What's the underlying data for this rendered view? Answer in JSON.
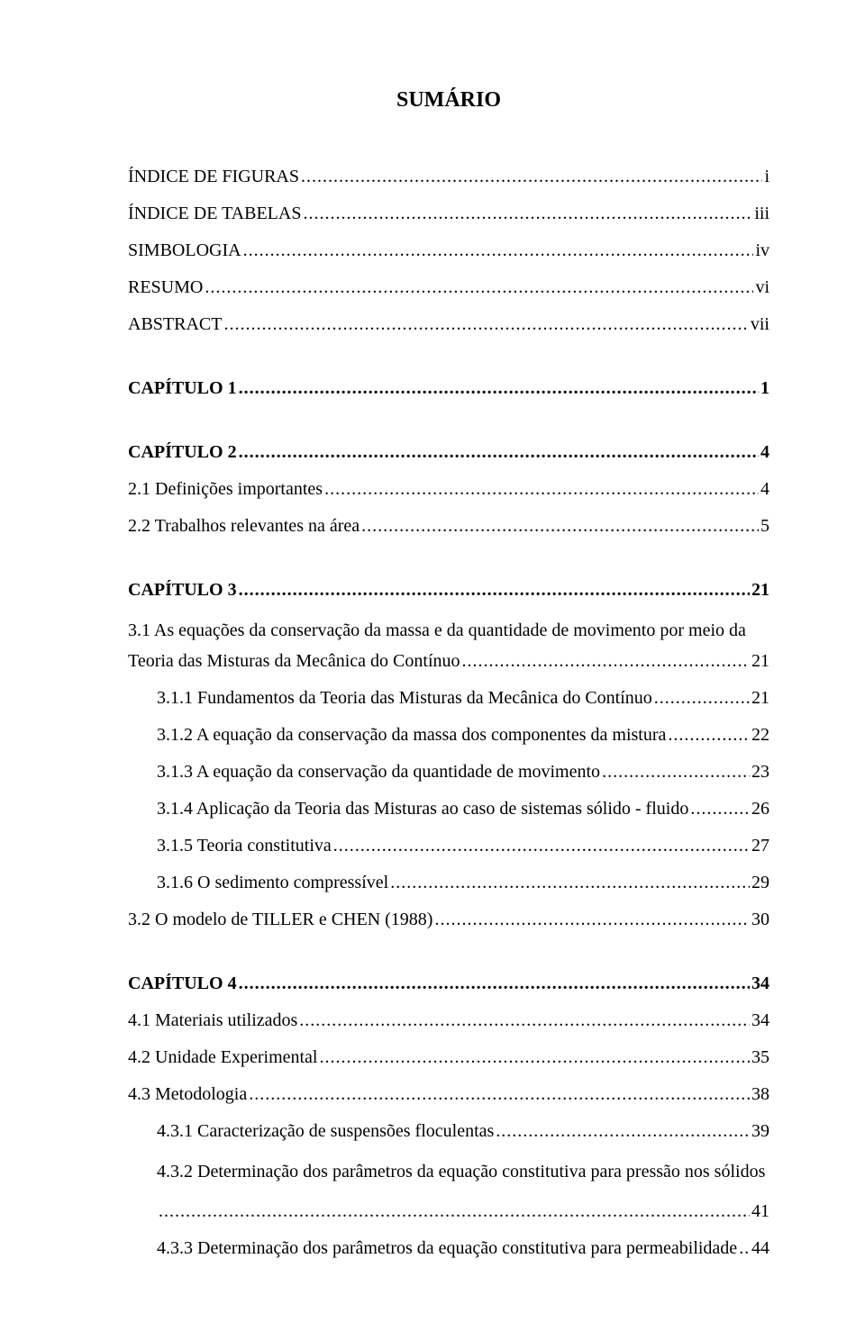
{
  "title": "SUMÁRIO",
  "entries": [
    {
      "label": "ÍNDICE DE FIGURAS",
      "page": "i",
      "level": 0,
      "bold": false,
      "cls": "front",
      "gap": "none"
    },
    {
      "label": "ÍNDICE DE TABELAS",
      "page": "iii",
      "level": 0,
      "bold": false,
      "cls": "front",
      "gap": "med"
    },
    {
      "label": "SIMBOLOGIA",
      "page": "iv",
      "level": 0,
      "bold": false,
      "cls": "front",
      "gap": "med"
    },
    {
      "label": "RESUMO",
      "page": "vi",
      "level": 0,
      "bold": false,
      "cls": "front",
      "gap": "med"
    },
    {
      "label": "ABSTRACT",
      "page": "vii",
      "level": 0,
      "bold": false,
      "cls": "front",
      "gap": "med"
    },
    {
      "label": "CAPÍTULO 1",
      "page": "1",
      "level": 0,
      "bold": true,
      "cls": "chap",
      "gap": "large"
    },
    {
      "label": "CAPÍTULO 2",
      "page": "4",
      "level": 0,
      "bold": true,
      "cls": "chap",
      "gap": "large"
    },
    {
      "label": "2.1 Definições importantes",
      "page": "4",
      "level": 0,
      "bold": false,
      "cls": "body",
      "gap": "med"
    },
    {
      "label": "2.2 Trabalhos relevantes na área",
      "page": "5",
      "level": 0,
      "bold": false,
      "cls": "body",
      "gap": "med"
    },
    {
      "label": "CAPÍTULO 3",
      "page": "21",
      "level": 0,
      "bold": true,
      "cls": "chap",
      "gap": "large"
    },
    {
      "wrap": true,
      "line1": "3.1 As equações da conservação da massa e da quantidade de movimento por meio da",
      "line2": "Teoria das Misturas da Mecânica do Contínuo",
      "page": "21",
      "level": 0,
      "bold": false,
      "cls": "body",
      "gap": "med"
    },
    {
      "label": "3.1.1 Fundamentos da Teoria das Misturas da Mecânica do Contínuo",
      "page": "21",
      "level": 1,
      "bold": false,
      "cls": "body",
      "gap": "med"
    },
    {
      "label": "3.1.2 A equação da conservação da massa dos componentes da mistura",
      "page": "22",
      "level": 1,
      "bold": false,
      "cls": "body",
      "gap": "med"
    },
    {
      "label": "3.1.3 A equação da conservação da quantidade de movimento",
      "page": "23",
      "level": 1,
      "bold": false,
      "cls": "body",
      "gap": "med"
    },
    {
      "label": "3.1.4 Aplicação da Teoria das Misturas ao caso de sistemas sólido - fluido",
      "page": "26",
      "level": 1,
      "bold": false,
      "cls": "body",
      "gap": "med"
    },
    {
      "label": "3.1.5 Teoria constitutiva",
      "page": "27",
      "level": 1,
      "bold": false,
      "cls": "body",
      "gap": "med"
    },
    {
      "label": "3.1.6 O sedimento compressível",
      "page": "29",
      "level": 1,
      "bold": false,
      "cls": "body",
      "gap": "med"
    },
    {
      "label": "3.2 O modelo de TILLER e CHEN (1988)",
      "page": "30",
      "level": 0,
      "bold": false,
      "cls": "body",
      "gap": "med"
    },
    {
      "label": "CAPÍTULO 4",
      "page": "34",
      "level": 0,
      "bold": true,
      "cls": "chap",
      "gap": "large"
    },
    {
      "label": "4.1 Materiais utilizados",
      "page": "34",
      "level": 0,
      "bold": false,
      "cls": "body",
      "gap": "med"
    },
    {
      "label": "4.2 Unidade Experimental",
      "page": "35",
      "level": 0,
      "bold": false,
      "cls": "body",
      "gap": "med"
    },
    {
      "label": "4.3 Metodologia",
      "page": "38",
      "level": 0,
      "bold": false,
      "cls": "body",
      "gap": "med"
    },
    {
      "label": "4.3.1 Caracterização de suspensões floculentas",
      "page": "39",
      "level": 1,
      "bold": false,
      "cls": "body",
      "gap": "med"
    },
    {
      "wrap": true,
      "line1": "4.3.2 Determinação dos parâmetros da equação constitutiva para pressão nos sólidos",
      "line2": "",
      "page": "41",
      "level": 1,
      "bold": false,
      "cls": "body",
      "gap": "med",
      "rightdots": true
    },
    {
      "label": "4.3.3 Determinação dos parâmetros da equação constitutiva para permeabilidade",
      "page": "44",
      "level": 1,
      "bold": false,
      "cls": "body",
      "gap": "med",
      "tightdots": true
    }
  ]
}
